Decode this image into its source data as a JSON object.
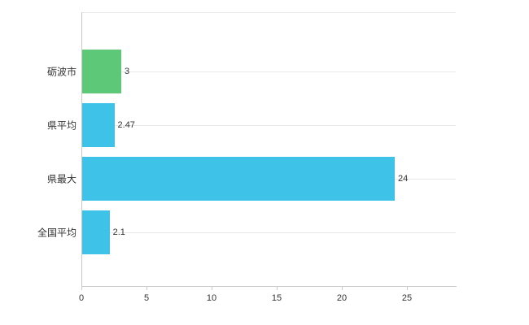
{
  "chart_data": {
    "type": "bar",
    "orientation": "horizontal",
    "title": "",
    "xlabel": "",
    "ylabel": "",
    "categories": [
      "砺波市",
      "県平均",
      "県最大",
      "全国平均"
    ],
    "values": [
      3,
      2.47,
      24,
      2.1
    ],
    "value_labels": [
      "3",
      "2.47",
      "24",
      "2.1"
    ],
    "xlim": [
      0,
      28.75
    ],
    "xticks": [
      0,
      5,
      10,
      15,
      20,
      25
    ],
    "xtick_labels": [
      "0",
      "5",
      "10",
      "15",
      "20",
      "25"
    ],
    "grid": "horizontal-category-lines",
    "legend": "none",
    "colors": {
      "bar_colors": [
        "#5dc878",
        "#3fc2e8",
        "#3fc2e8",
        "#3fc2e8"
      ],
      "highlight_bar": "#5dc878",
      "default_bar": "#3fc2e8",
      "axis": "#c9c9c9",
      "grid": "#e8e8e8",
      "text": "#333333",
      "background": "#ffffff"
    }
  }
}
